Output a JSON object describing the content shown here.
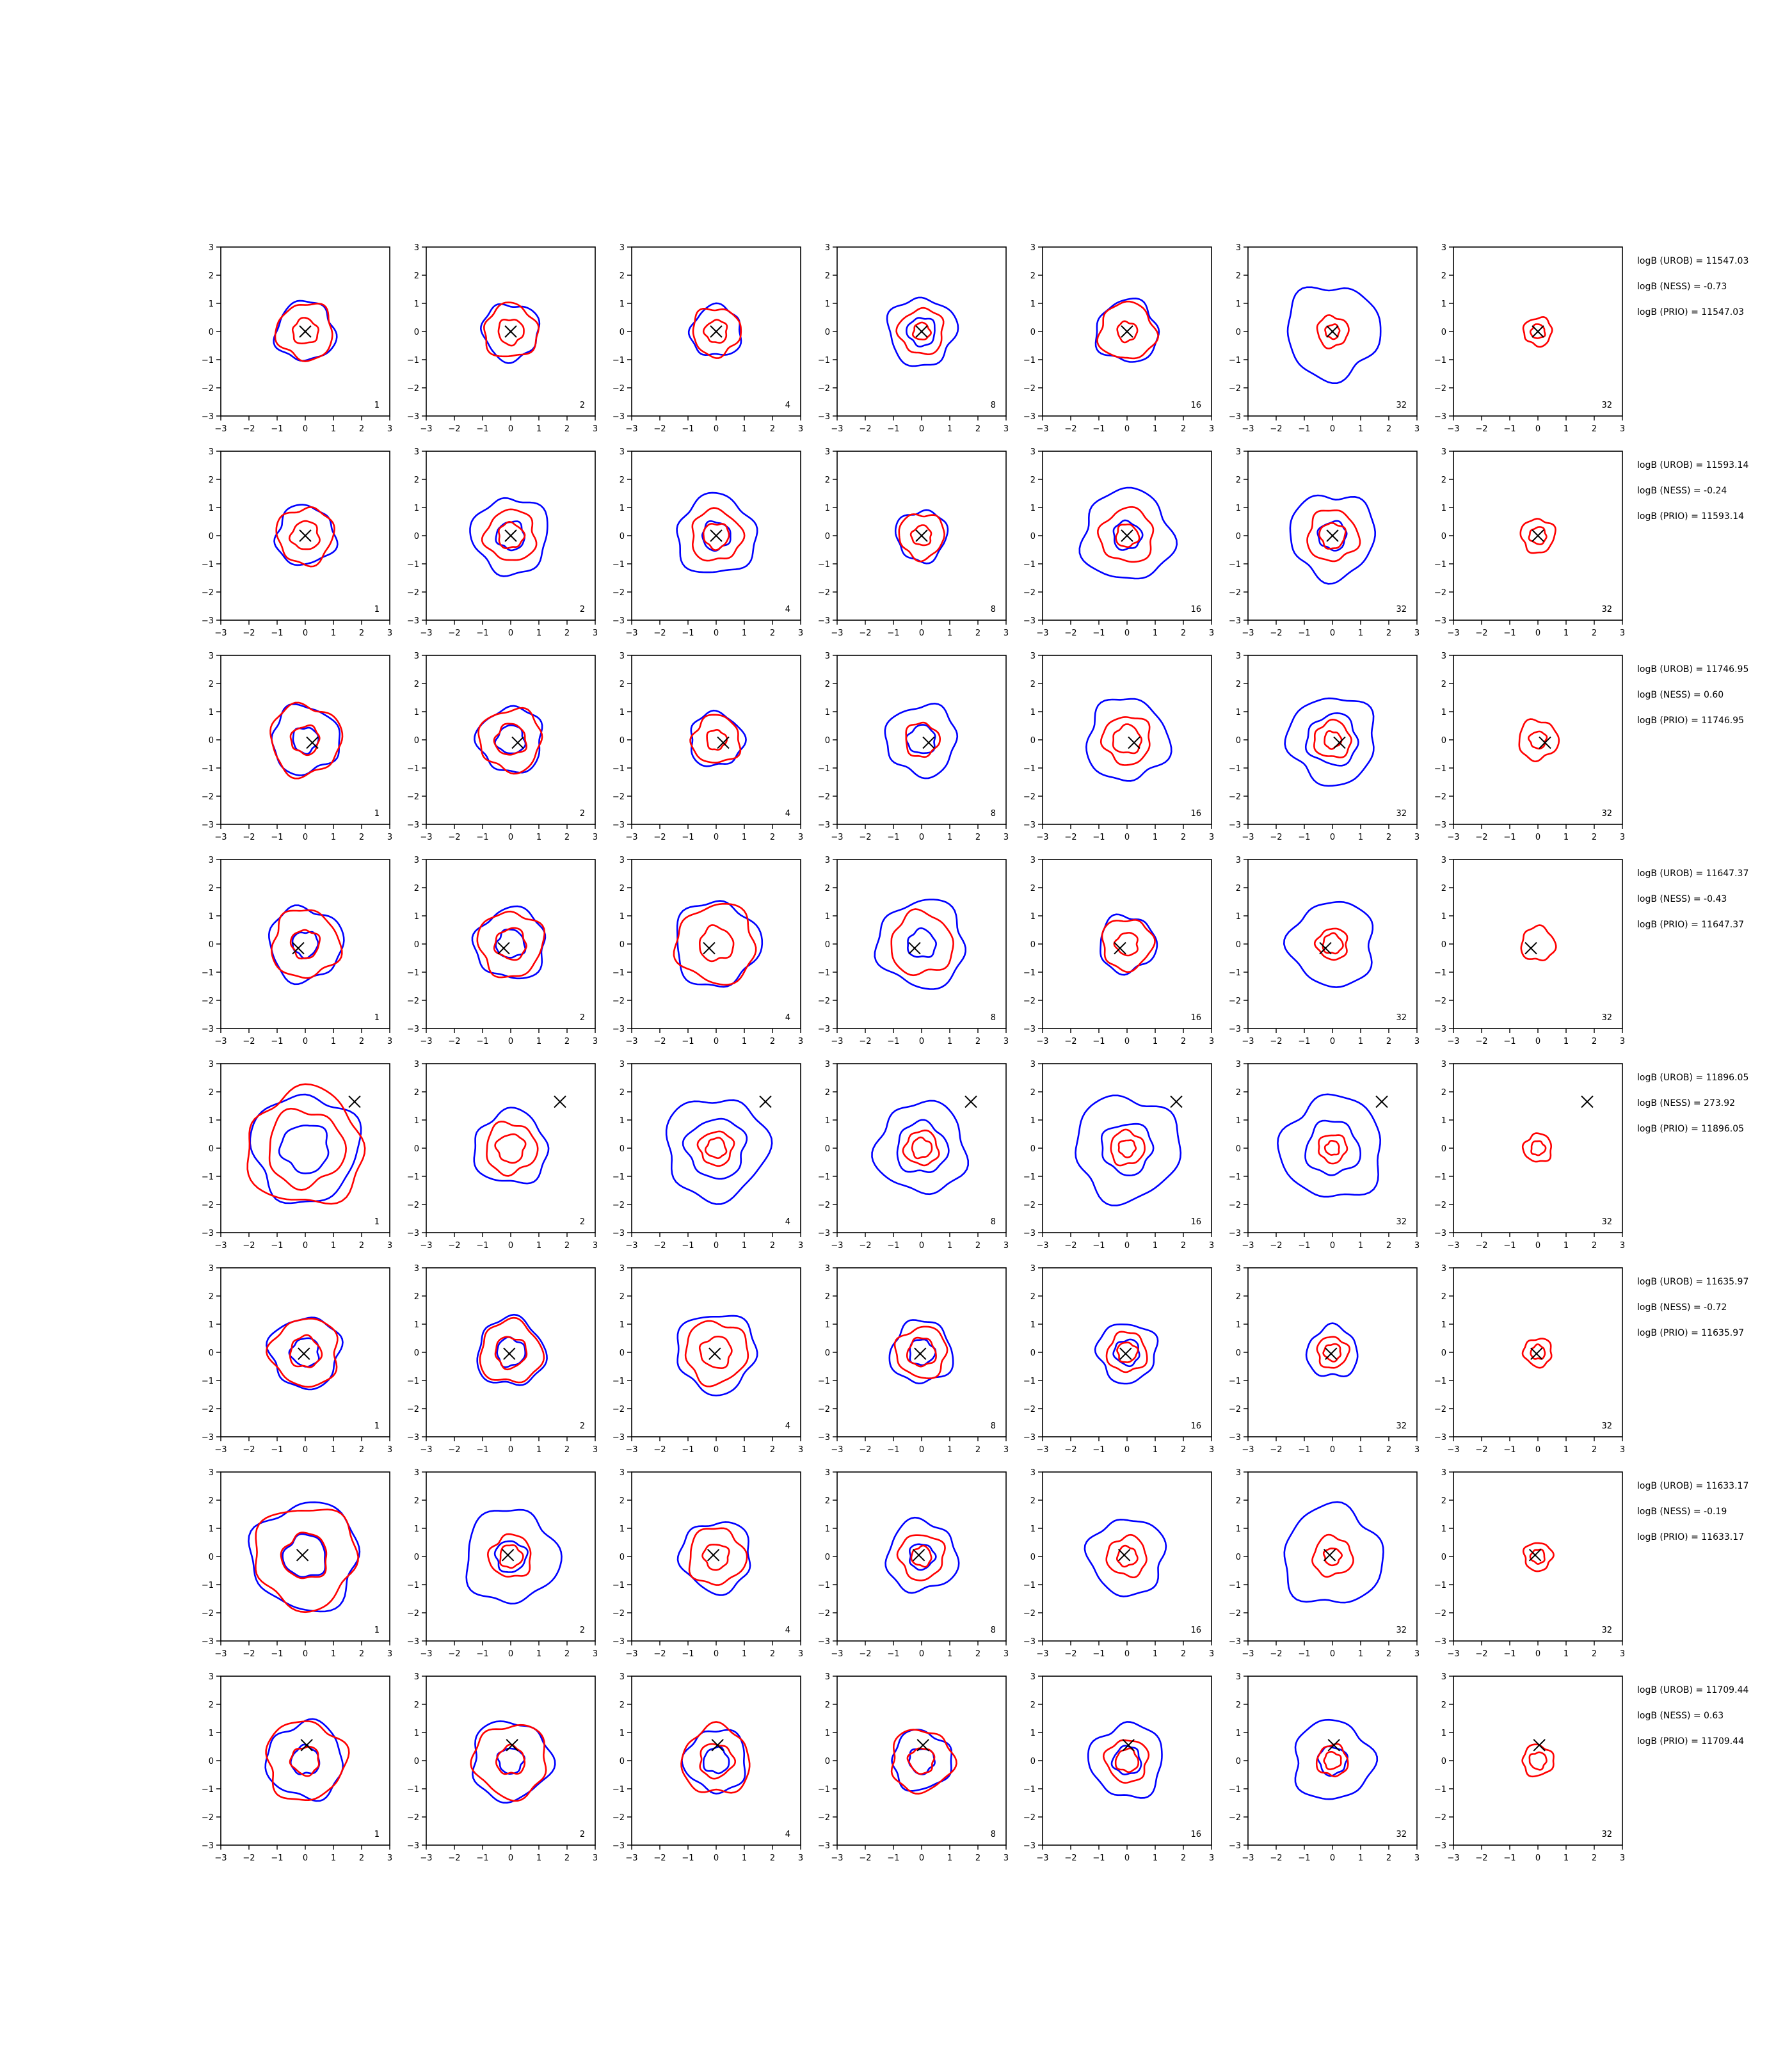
{
  "chart_data": {
    "type": "contour",
    "grid": "7x8 small multiples",
    "axes": {
      "xlim": [
        -3,
        3
      ],
      "ylim": [
        -3,
        3
      ],
      "ticks": [
        -3,
        -2,
        -1,
        0,
        1,
        2,
        3
      ],
      "grid": false
    },
    "colors": {
      "blue": "#0000ff",
      "red": "#ff0000",
      "marker": "#000000",
      "axis": "#000000"
    },
    "col_labels": [
      "1",
      "2",
      "4",
      "8",
      "16",
      "32",
      "32"
    ],
    "rows": [
      {
        "marker": [
          0.0,
          0.0
        ],
        "stats": [
          "logB (UROB) = 11547.03",
          "logB (NESS) = -0.73",
          "logB (PRIO) = 11547.03"
        ],
        "panels": [
          {
            "blue": [
              1.05
            ],
            "red": [
              1.0,
              0.45
            ]
          },
          {
            "blue": [
              1.0
            ],
            "red": [
              0.95,
              0.45
            ]
          },
          {
            "blue": [
              0.9
            ],
            "red": [
              0.85,
              0.4
            ]
          },
          {
            "blue": [
              1.2,
              0.5
            ],
            "red": [
              0.8,
              0.3
            ]
          },
          {
            "blue": [
              1.1
            ],
            "red": [
              1.0,
              0.35
            ]
          },
          {
            "blue": [
              1.65
            ],
            "red": [
              0.55,
              0.25
            ]
          },
          {
            "blue": [],
            "red": [
              0.5,
              0.25
            ]
          }
        ]
      },
      {
        "marker": [
          0.0,
          0.0
        ],
        "stats": [
          "logB (UROB) = 11593.14",
          "logB (NESS) = -0.24",
          "logB (PRIO) = 11593.14"
        ],
        "panels": [
          {
            "blue": [
              1.05
            ],
            "red": [
              1.0,
              0.5
            ]
          },
          {
            "blue": [
              1.35,
              0.5
            ],
            "red": [
              0.9,
              0.45
            ]
          },
          {
            "blue": [
              1.4,
              0.5
            ],
            "red": [
              0.9,
              0.45
            ]
          },
          {
            "blue": [
              0.9
            ],
            "red": [
              0.8,
              0.35
            ]
          },
          {
            "blue": [
              1.6,
              0.5
            ],
            "red": [
              0.95,
              0.4
            ]
          },
          {
            "blue": [
              1.5,
              0.5
            ],
            "red": [
              0.9,
              0.45
            ]
          },
          {
            "blue": [],
            "red": [
              0.6,
              0.3
            ]
          }
        ]
      },
      {
        "marker": [
          0.25,
          -0.1
        ],
        "stats": [
          "logB (UROB) = 11746.95",
          "logB (NESS) = 0.60",
          "logB (PRIO) = 11746.95"
        ],
        "panels": [
          {
            "blue": [
              1.2,
              0.45
            ],
            "red": [
              1.25,
              0.5
            ]
          },
          {
            "blue": [
              1.15,
              0.5
            ],
            "red": [
              1.1,
              0.55
            ]
          },
          {
            "blue": [
              0.95
            ],
            "red": [
              0.85,
              0.35
            ]
          },
          {
            "blue": [
              1.25,
              0.5
            ],
            "red": [
              0.6
            ]
          },
          {
            "blue": [
              1.45
            ],
            "red": [
              0.85,
              0.5
            ]
          },
          {
            "blue": [
              1.55,
              0.9
            ],
            "red": [
              0.65,
              0.3
            ]
          },
          {
            "blue": [],
            "red": [
              0.7,
              0.3
            ]
          }
        ]
      },
      {
        "marker": [
          -0.25,
          -0.15
        ],
        "stats": [
          "logB (UROB) = 11647.37",
          "logB (NESS) = -0.43",
          "logB (PRIO) = 11647.37"
        ],
        "panels": [
          {
            "blue": [
              1.3,
              0.45
            ],
            "red": [
              1.2,
              0.5
            ]
          },
          {
            "blue": [
              1.25,
              0.5
            ],
            "red": [
              1.15,
              0.55
            ]
          },
          {
            "blue": [
              1.5
            ],
            "red": [
              1.4,
              0.6
            ]
          },
          {
            "blue": [
              1.55,
              0.5
            ],
            "red": [
              1.1
            ]
          },
          {
            "blue": [
              1.0
            ],
            "red": [
              0.9,
              0.4
            ]
          },
          {
            "blue": [
              1.5
            ],
            "red": [
              0.55,
              0.35
            ]
          },
          {
            "blue": [],
            "red": [
              0.6
            ]
          }
        ]
      },
      {
        "marker": [
          1.75,
          1.65
        ],
        "stats": [
          "logB (UROB) = 11896.05",
          "logB (NESS) = 273.92",
          "logB (PRIO) = 11896.05"
        ],
        "panels": [
          {
            "blue": [
              1.9,
              0.85
            ],
            "red": [
              2.05,
              1.35
            ]
          },
          {
            "blue": [
              1.3
            ],
            "red": [
              0.9,
              0.5
            ]
          },
          {
            "blue": [
              1.8,
              1.05
            ],
            "red": [
              0.6,
              0.35
            ]
          },
          {
            "blue": [
              1.6,
              0.9
            ],
            "red": [
              0.6,
              0.35
            ]
          },
          {
            "blue": [
              1.85,
              0.9
            ],
            "red": [
              0.6,
              0.3
            ]
          },
          {
            "blue": [
              1.8,
              0.95
            ],
            "red": [
              0.5,
              0.25
            ]
          },
          {
            "blue": [],
            "red": [
              0.5,
              0.25
            ]
          }
        ]
      },
      {
        "marker": [
          -0.05,
          -0.05
        ],
        "stats": [
          "logB (UROB) = 11635.97",
          "logB (NESS) = -0.72",
          "logB (PRIO) = 11635.97"
        ],
        "panels": [
          {
            "blue": [
              1.25,
              0.5
            ],
            "red": [
              1.2,
              0.55
            ]
          },
          {
            "blue": [
              1.2,
              0.5
            ],
            "red": [
              1.1,
              0.55
            ]
          },
          {
            "blue": [
              1.4
            ],
            "red": [
              1.1,
              0.55
            ]
          },
          {
            "blue": [
              1.1,
              0.45
            ],
            "red": [
              0.9,
              0.5
            ]
          },
          {
            "blue": [
              1.05,
              0.45
            ],
            "red": [
              0.7,
              0.35
            ]
          },
          {
            "blue": [
              0.9
            ],
            "red": [
              0.55,
              0.3
            ]
          },
          {
            "blue": [],
            "red": [
              0.5,
              0.25
            ]
          }
        ]
      },
      {
        "marker": [
          -0.1,
          0.05
        ],
        "stats": [
          "logB (UROB) = 11633.17",
          "logB (NESS) = -0.19",
          "logB (PRIO) = 11633.17"
        ],
        "panels": [
          {
            "blue": [
              1.9,
              0.75
            ],
            "red": [
              1.8,
              0.8
            ]
          },
          {
            "blue": [
              1.65,
              0.55
            ],
            "red": [
              0.75,
              0.4
            ]
          },
          {
            "blue": [
              1.25
            ],
            "red": [
              1.0,
              0.45
            ]
          },
          {
            "blue": [
              1.25,
              0.45
            ],
            "red": [
              0.8,
              0.35
            ]
          },
          {
            "blue": [
              1.35
            ],
            "red": [
              0.7,
              0.35
            ]
          },
          {
            "blue": [
              1.75
            ],
            "red": [
              0.7,
              0.3
            ]
          },
          {
            "blue": [],
            "red": [
              0.5,
              0.25
            ]
          }
        ]
      },
      {
        "marker": [
          0.05,
          0.55
        ],
        "stats": [
          "logB (UROB) = 11709.44",
          "logB (NESS) = 0.63",
          "logB (PRIO) = 11709.44"
        ],
        "panels": [
          {
            "blue": [
              1.35,
              0.5
            ],
            "red": [
              1.4,
              0.5
            ]
          },
          {
            "blue": [
              1.4,
              0.45
            ],
            "red": [
              1.3,
              0.5
            ]
          },
          {
            "blue": [
              1.1,
              0.45
            ],
            "red": [
              1.2,
              0.6
            ]
          },
          {
            "blue": [
              1.05,
              0.45
            ],
            "red": [
              1.1,
              0.45
            ]
          },
          {
            "blue": [
              1.3,
              0.5
            ],
            "red": [
              0.75,
              0.4
            ]
          },
          {
            "blue": [
              1.4,
              0.5
            ],
            "red": [
              0.55,
              0.3
            ]
          },
          {
            "blue": [],
            "red": [
              0.55,
              0.3
            ]
          }
        ]
      }
    ]
  }
}
